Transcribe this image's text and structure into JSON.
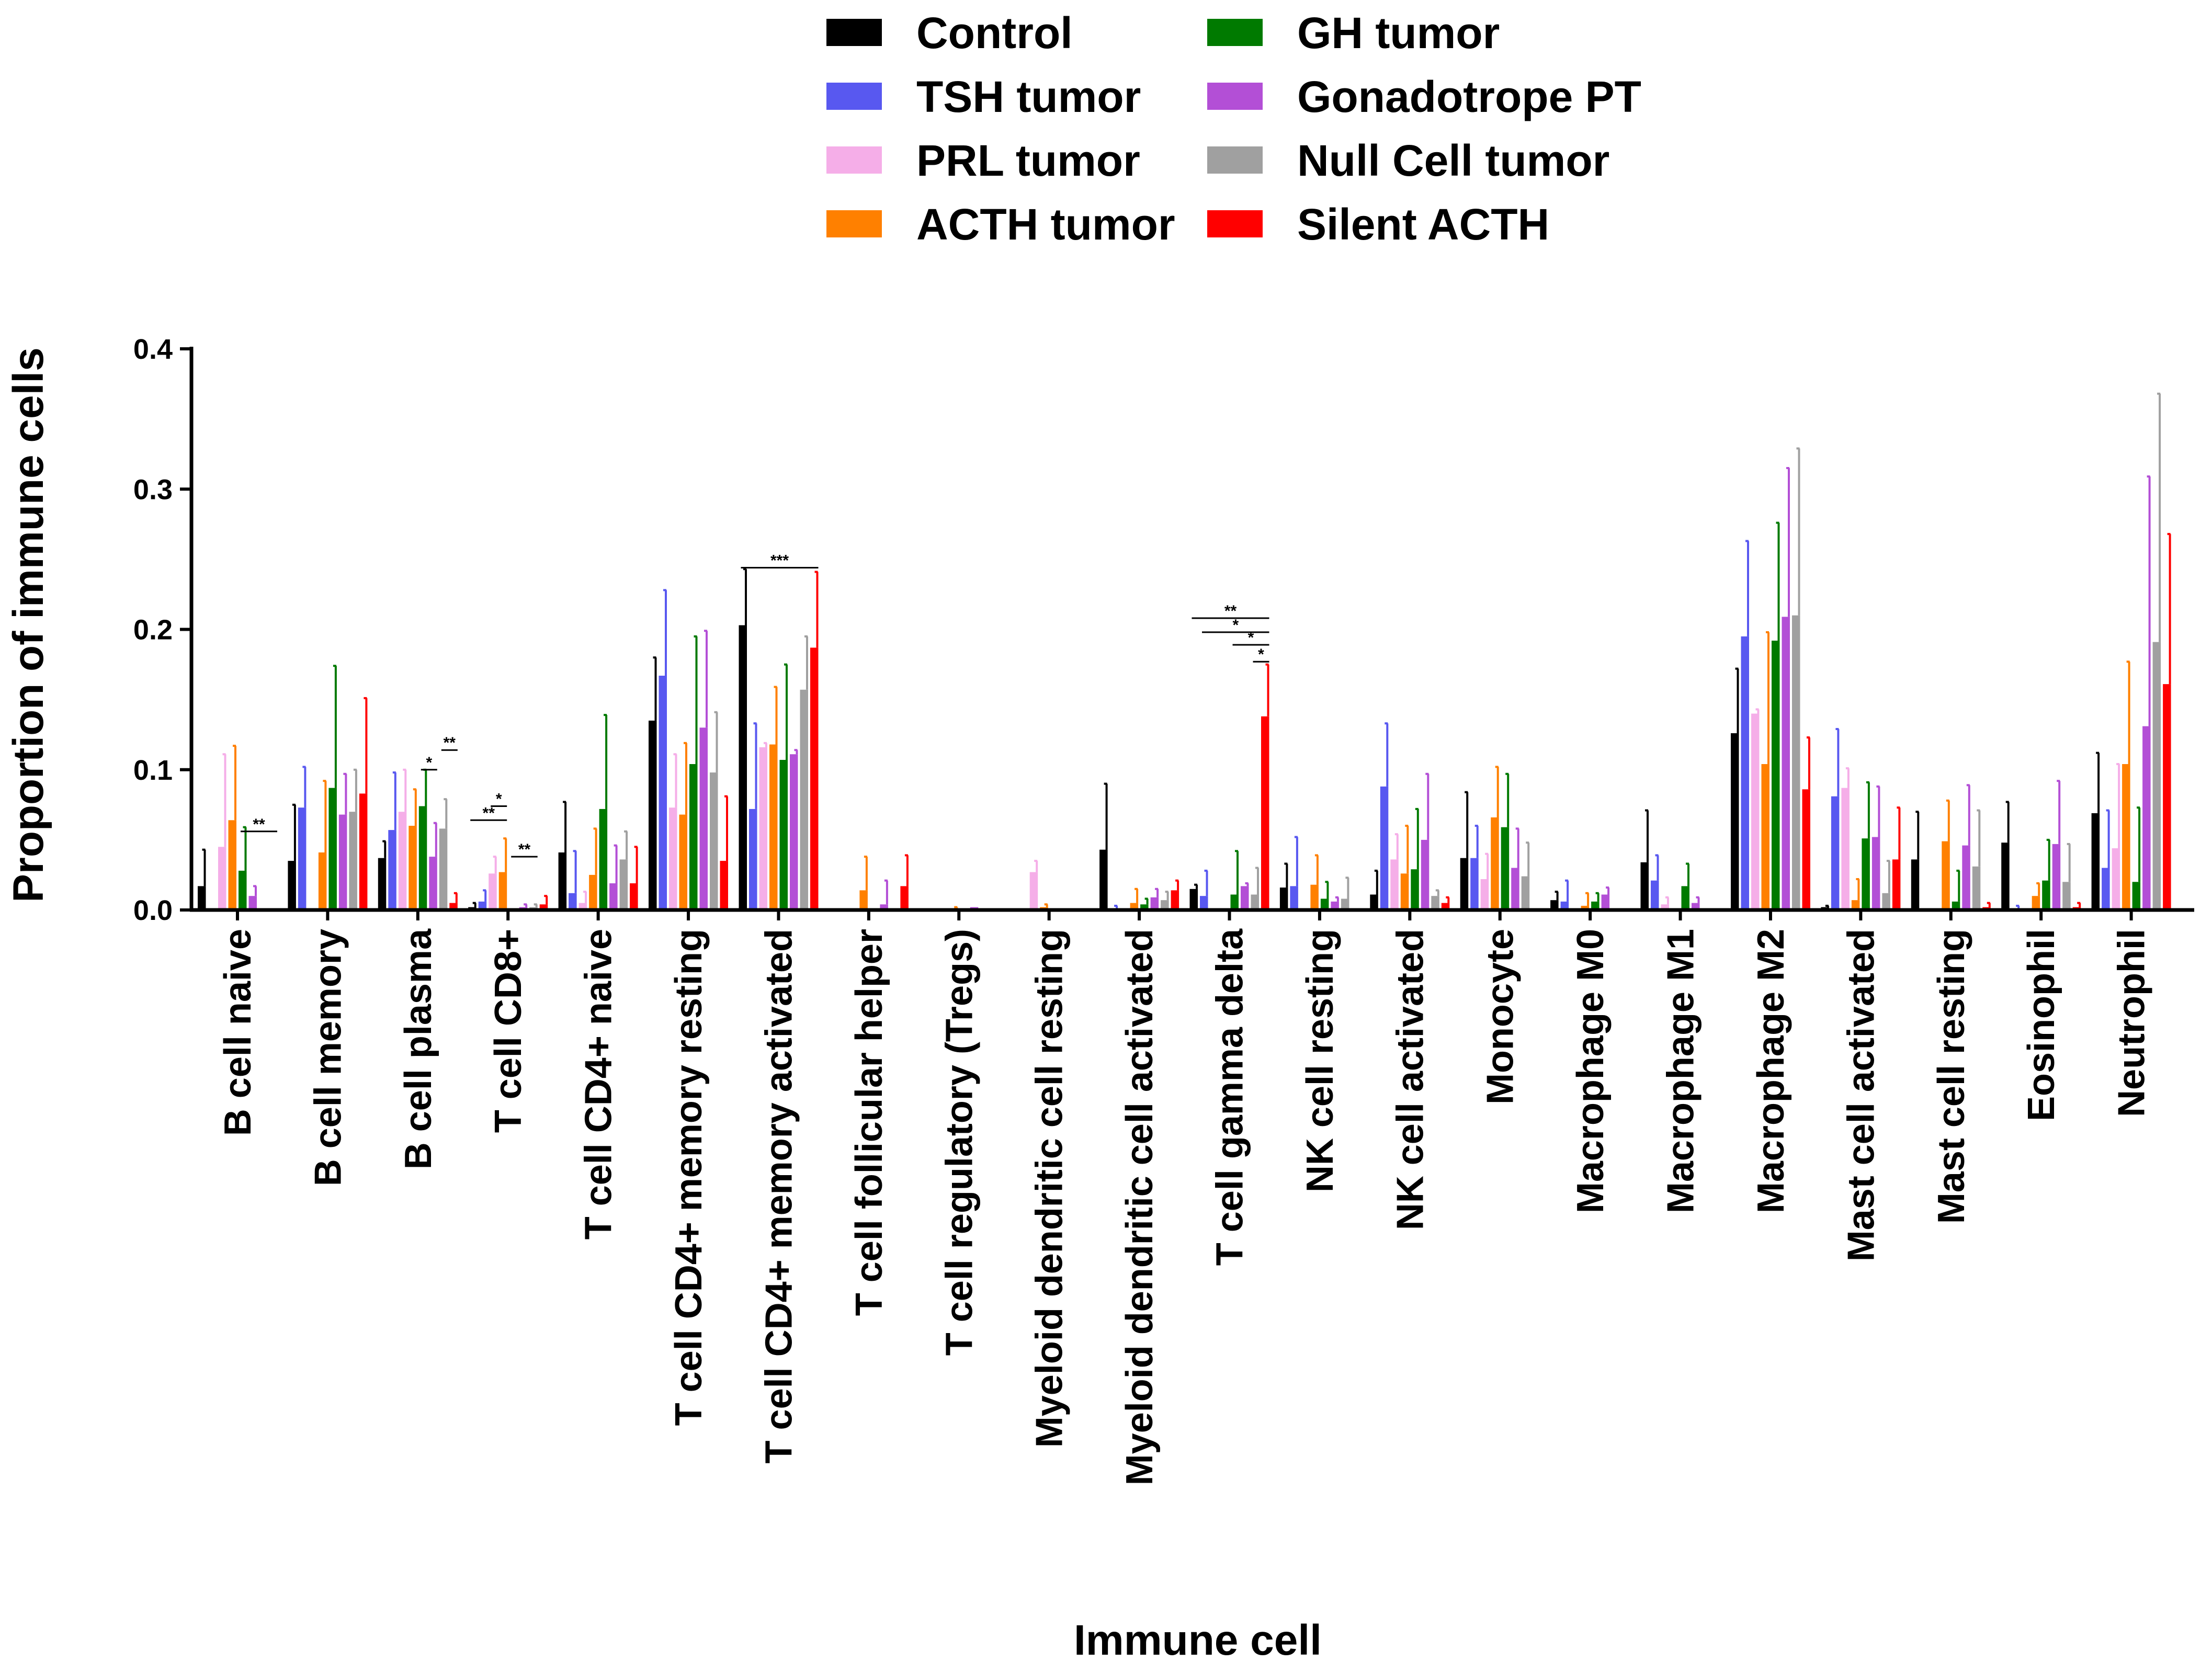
{
  "chart_data": {
    "type": "bar",
    "title": "",
    "xlabel": "Immune cell",
    "ylabel": "Proportion of immune cells",
    "ylim": [
      0,
      0.4
    ],
    "yticks": [
      "0.0",
      "0.1",
      "0.2",
      "0.3",
      "0.4"
    ],
    "legend_position": "top-center",
    "grid": false,
    "categories": [
      "B cell naive",
      "B cell memory",
      "B cell plasma",
      "T cell CD8+",
      "T cell CD4+ naive",
      "T cell CD4+ memory resting",
      "T cell CD4+ memory activated",
      "T cell follicular helper",
      "T cell regulatory (Tregs)",
      "Myeloid dendritic cell resting",
      "Myeloid dendritic cell activated",
      "T cell gamma delta",
      "NK cell resting",
      "NK cell activated",
      "Monocyte",
      "Macrophage M0",
      "Macrophage M1",
      "Macrophage M2",
      "Mast cell activated",
      "Mast cell resting",
      "Eosinophil",
      "Neutrophil"
    ],
    "series": [
      {
        "name": "Control",
        "color": "#000000",
        "values": [
          0.017,
          0.035,
          0.037,
          0.002,
          0.041,
          0.135,
          0.203,
          0.0,
          0.0,
          0.0,
          0.043,
          0.015,
          0.016,
          0.011,
          0.037,
          0.007,
          0.034,
          0.126,
          0.002,
          0.036,
          0.048,
          0.069
        ],
        "errors": [
          0.026,
          0.04,
          0.012,
          0.003,
          0.036,
          0.045,
          0.04,
          0.0,
          0.0,
          0.0,
          0.047,
          0.003,
          0.017,
          0.017,
          0.047,
          0.006,
          0.037,
          0.046,
          0.001,
          0.034,
          0.029,
          0.043
        ]
      },
      {
        "name": "TSH tumor",
        "color": "#5858f0",
        "values": [
          0.0,
          0.073,
          0.057,
          0.006,
          0.012,
          0.167,
          0.072,
          0.0,
          0.0,
          0.0,
          0.001,
          0.01,
          0.017,
          0.088,
          0.037,
          0.006,
          0.021,
          0.195,
          0.081,
          0.0,
          0.001,
          0.03
        ],
        "errors": [
          0.0,
          0.029,
          0.041,
          0.008,
          0.03,
          0.061,
          0.061,
          0.0,
          0.0,
          0.0,
          0.002,
          0.018,
          0.035,
          0.045,
          0.023,
          0.015,
          0.018,
          0.068,
          0.048,
          0.0,
          0.002,
          0.041
        ]
      },
      {
        "name": "PRL tumor",
        "color": "#f5aee8",
        "values": [
          0.045,
          0.0,
          0.07,
          0.026,
          0.005,
          0.073,
          0.116,
          0.0,
          0.0,
          0.027,
          0.0,
          0.0,
          0.0,
          0.036,
          0.022,
          0.0,
          0.004,
          0.14,
          0.087,
          0.0,
          0.0,
          0.044
        ],
        "errors": [
          0.066,
          0.0,
          0.03,
          0.012,
          0.008,
          0.038,
          0.003,
          0.0,
          0.0,
          0.008,
          0.0,
          0.0,
          0.0,
          0.018,
          0.018,
          0.0,
          0.005,
          0.003,
          0.014,
          0.0,
          0.0,
          0.06
        ]
      },
      {
        "name": "ACTH tumor",
        "color": "#ff8000",
        "values": [
          0.064,
          0.041,
          0.06,
          0.027,
          0.025,
          0.068,
          0.118,
          0.014,
          0.001,
          0.002,
          0.005,
          0.0,
          0.018,
          0.026,
          0.066,
          0.003,
          0.0,
          0.104,
          0.007,
          0.049,
          0.01,
          0.104
        ],
        "errors": [
          0.053,
          0.051,
          0.026,
          0.024,
          0.033,
          0.051,
          0.041,
          0.024,
          0.001,
          0.002,
          0.01,
          0.0,
          0.021,
          0.034,
          0.036,
          0.009,
          0.0,
          0.094,
          0.015,
          0.029,
          0.009,
          0.073
        ]
      },
      {
        "name": "GH tumor",
        "color": "#007a00",
        "values": [
          0.028,
          0.087,
          0.074,
          0.0,
          0.072,
          0.104,
          0.107,
          0.0,
          0.0,
          0.0,
          0.004,
          0.011,
          0.008,
          0.029,
          0.059,
          0.006,
          0.017,
          0.192,
          0.051,
          0.006,
          0.021,
          0.02
        ],
        "errors": [
          0.031,
          0.087,
          0.026,
          0.0,
          0.067,
          0.091,
          0.068,
          0.0,
          0.0,
          0.0,
          0.004,
          0.031,
          0.012,
          0.043,
          0.038,
          0.006,
          0.016,
          0.084,
          0.04,
          0.022,
          0.029,
          0.053
        ]
      },
      {
        "name": "Gonadotrope PT",
        "color": "#b34fd6",
        "values": [
          0.01,
          0.068,
          0.038,
          0.002,
          0.019,
          0.13,
          0.111,
          0.004,
          0.002,
          0.0,
          0.009,
          0.017,
          0.006,
          0.05,
          0.03,
          0.011,
          0.005,
          0.209,
          0.052,
          0.046,
          0.047,
          0.131
        ],
        "errors": [
          0.007,
          0.029,
          0.024,
          0.002,
          0.027,
          0.069,
          0.003,
          0.017,
          0.0,
          0.0,
          0.006,
          0.002,
          0.003,
          0.047,
          0.028,
          0.005,
          0.004,
          0.106,
          0.036,
          0.043,
          0.045,
          0.178
        ]
      },
      {
        "name": "Null Cell tumor",
        "color": "#a0a0a0",
        "values": [
          0.0,
          0.07,
          0.058,
          0.002,
          0.036,
          0.098,
          0.157,
          0.0,
          0.0,
          0.0,
          0.007,
          0.011,
          0.008,
          0.01,
          0.024,
          0.0,
          0.0,
          0.21,
          0.012,
          0.031,
          0.02,
          0.191
        ],
        "errors": [
          0.0,
          0.03,
          0.021,
          0.002,
          0.02,
          0.043,
          0.038,
          0.0,
          0.0,
          0.0,
          0.006,
          0.019,
          0.015,
          0.004,
          0.024,
          0.0,
          0.0,
          0.119,
          0.023,
          0.04,
          0.027,
          0.177
        ]
      },
      {
        "name": "Silent ACTH",
        "color": "#ff0000",
        "values": [
          0.0,
          0.083,
          0.005,
          0.004,
          0.019,
          0.035,
          0.187,
          0.017,
          0.0,
          0.0,
          0.014,
          0.138,
          0.0,
          0.005,
          0.0,
          0.0,
          0.0,
          0.086,
          0.036,
          0.002,
          0.002,
          0.161
        ],
        "errors": [
          0.0,
          0.068,
          0.007,
          0.006,
          0.026,
          0.046,
          0.054,
          0.022,
          0.0,
          0.0,
          0.007,
          0.037,
          0.0,
          0.004,
          0.0,
          0.0,
          0.0,
          0.037,
          0.037,
          0.003,
          0.003,
          0.107
        ]
      }
    ],
    "annotations": [
      {
        "category": 0,
        "text": "**",
        "from_series": 4,
        "to_series": 7,
        "y": 0.056
      },
      {
        "category": 2,
        "text": "*",
        "from_series": 4,
        "to_series": 5,
        "y": 0.1
      },
      {
        "category": 2,
        "text": "**",
        "from_series": 6,
        "to_series": 7,
        "y": 0.114
      },
      {
        "category": 3,
        "text": "**",
        "from_series": 0,
        "to_series": 3,
        "y": 0.064
      },
      {
        "category": 3,
        "text": "*",
        "from_series": 2,
        "to_series": 3,
        "y": 0.074
      },
      {
        "category": 3,
        "text": "**",
        "from_series": 4,
        "to_series": 6,
        "y": 0.038
      },
      {
        "category": 6,
        "text": "***",
        "from_series": 0,
        "to_series": 7,
        "y": 0.244
      },
      {
        "category": 11,
        "text": "**",
        "from_series": 0,
        "to_series": 7,
        "y": 0.208
      },
      {
        "category": 11,
        "text": "*",
        "from_series": 1,
        "to_series": 7,
        "y": 0.198
      },
      {
        "category": 11,
        "text": "*",
        "from_series": 4,
        "to_series": 7,
        "y": 0.189
      },
      {
        "category": 11,
        "text": "*",
        "from_series": 6,
        "to_series": 7,
        "y": 0.177
      }
    ]
  }
}
